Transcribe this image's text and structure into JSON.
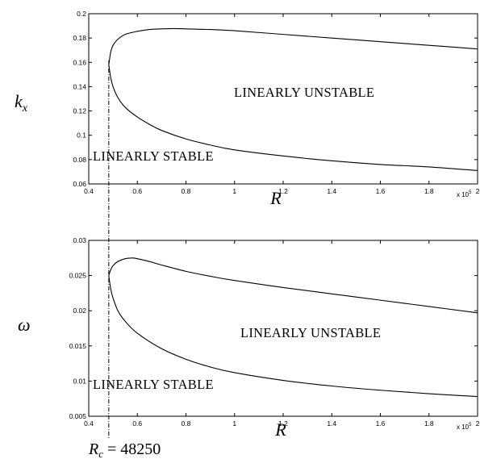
{
  "chart_data": [
    {
      "type": "line",
      "xlabel": "R",
      "ylabel": "k_x",
      "xlim": [
        0.4,
        2
      ],
      "ylim": [
        0.06,
        0.2
      ],
      "x_scale_note": "x 10^5",
      "xticks": [
        "0.4",
        "0.6",
        "0.8",
        "1",
        "1.2",
        "1.4",
        "1.6",
        "1.8",
        "2"
      ],
      "yticks": [
        "0.06",
        "0.08",
        "0.1",
        "0.12",
        "0.14",
        "0.16",
        "0.18",
        "0.2"
      ],
      "series": [
        {
          "name": "",
          "x": [
            2.0,
            1.8,
            1.6,
            1.4,
            1.2,
            1.0,
            0.9,
            0.8,
            0.75,
            0.7,
            0.65,
            0.6,
            0.55,
            0.52,
            0.5,
            0.49,
            0.4825
          ],
          "y": [
            0.171,
            0.174,
            0.177,
            0.18,
            0.183,
            0.186,
            0.187,
            0.1875,
            0.1878,
            0.1875,
            0.187,
            0.1855,
            0.183,
            0.179,
            0.174,
            0.168,
            0.158
          ]
        },
        {
          "name": "",
          "x": [
            0.4825,
            0.49,
            0.5,
            0.52,
            0.55,
            0.6,
            0.65,
            0.7,
            0.8,
            0.9,
            1.0,
            1.2,
            1.4,
            1.6,
            1.8,
            2.0
          ],
          "y": [
            0.158,
            0.148,
            0.14,
            0.131,
            0.123,
            0.115,
            0.109,
            0.104,
            0.097,
            0.092,
            0.088,
            0.083,
            0.079,
            0.076,
            0.074,
            0.071
          ]
        }
      ],
      "annotations": [
        "LINEARLY UNSTABLE",
        "LINEARLY STABLE"
      ]
    },
    {
      "type": "line",
      "xlabel": "R",
      "ylabel": "ω",
      "xlim": [
        0.4,
        2
      ],
      "ylim": [
        0.005,
        0.03
      ],
      "x_scale_note": "x 10^5",
      "xticks": [
        "0.4",
        "0.6",
        "0.8",
        "1",
        "1.2",
        "1.4",
        "1.6",
        "1.8",
        "2"
      ],
      "yticks": [
        "0.005",
        "0.01",
        "0.015",
        "0.02",
        "0.025",
        "0.03"
      ],
      "series": [
        {
          "name": "",
          "x": [
            2.0,
            1.8,
            1.6,
            1.4,
            1.2,
            1.0,
            0.9,
            0.8,
            0.7,
            0.65,
            0.6,
            0.58,
            0.55,
            0.52,
            0.5,
            0.49,
            0.4825
          ],
          "y": [
            0.0197,
            0.0206,
            0.0215,
            0.0224,
            0.0233,
            0.0243,
            0.0249,
            0.0256,
            0.0265,
            0.027,
            0.0274,
            0.0275,
            0.0274,
            0.027,
            0.0264,
            0.0258,
            0.025
          ]
        },
        {
          "name": "",
          "x": [
            0.4825,
            0.49,
            0.5,
            0.52,
            0.55,
            0.6,
            0.7,
            0.8,
            0.9,
            1.0,
            1.2,
            1.4,
            1.6,
            1.8,
            2.0
          ],
          "y": [
            0.025,
            0.0232,
            0.0218,
            0.02,
            0.0185,
            0.0168,
            0.0146,
            0.0131,
            0.012,
            0.0112,
            0.0101,
            0.0093,
            0.0087,
            0.0082,
            0.0078
          ]
        }
      ],
      "annotations": [
        "LINEARLY UNSTABLE",
        "LINEARLY STABLE"
      ]
    }
  ],
  "text": {
    "top_ylabel": "k",
    "top_ylabel_sub": "x",
    "top_xlabel": "R",
    "top_unstable": "LINEARLY UNSTABLE",
    "top_stable": "LINEARLY STABLE",
    "bottom_ylabel": "ω",
    "bottom_xlabel": "R",
    "bottom_unstable": "LINEARLY UNSTABLE",
    "bottom_stable": "LINEARLY STABLE",
    "sci_base": "x 10",
    "sci_exp": "5",
    "rc_sym": "R",
    "rc_sub": "c",
    "rc_value": " = 48250"
  },
  "critical_R": 0.4825
}
